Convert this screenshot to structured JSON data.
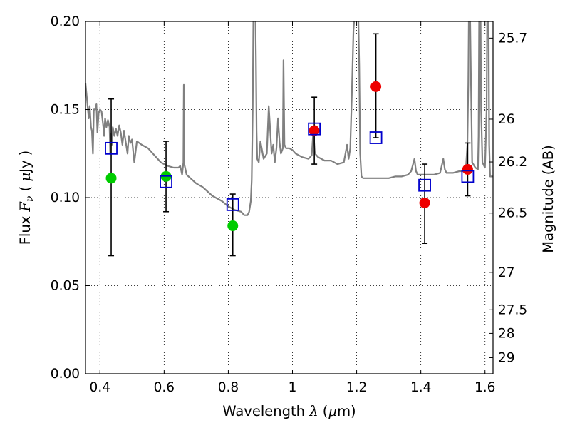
{
  "chart_data": {
    "type": "scatter",
    "xlabel": "Wavelength  λ (μm)",
    "xlabel_prefix": "Wavelength  ",
    "xlabel_symbol": "λ",
    "xlabel_unit_open": " (",
    "xlabel_unit_mu": "μ",
    "xlabel_unit_rest": "m)",
    "ylabel": "Flux  Fν  ( μJy )",
    "ylabel_prefix": "Flux  ",
    "ylabel_symbol": "F",
    "ylabel_sub": "ν",
    "ylabel_unit_open": "  ( ",
    "ylabel_unit_mu": "μ",
    "ylabel_unit_rest": "Jy )",
    "y2label": "Magnitude (AB)",
    "xlim": [
      0.355,
      1.625
    ],
    "ylim": [
      0.0,
      0.2
    ],
    "xticks": [
      0.4,
      0.6,
      0.8,
      1.0,
      1.2,
      1.4,
      1.6
    ],
    "xtick_labels": [
      "0.4",
      "0.6",
      "0.8",
      "1",
      "1.2",
      "1.4",
      "1.6"
    ],
    "yticks": [
      0.0,
      0.05,
      0.1,
      0.15,
      0.2
    ],
    "ytick_labels": [
      "0.00",
      "0.05",
      "0.10",
      "0.15",
      "0.20"
    ],
    "mag_ticks": [
      25.7,
      26,
      26.2,
      26.5,
      27,
      27.5,
      28,
      29
    ],
    "mag_tick_labels": [
      "25.7",
      "26",
      "26.2",
      "26.5",
      "27",
      "27.5",
      "28",
      "29"
    ],
    "grid": true,
    "colors": {
      "model_line": "#808080",
      "green": "#00cc00",
      "red": "#ee0000",
      "box": "#0000cc",
      "errorbar": "#000000"
    },
    "model_spectrum": [
      [
        0.355,
        0.165
      ],
      [
        0.36,
        0.155
      ],
      [
        0.365,
        0.145
      ],
      [
        0.368,
        0.152
      ],
      [
        0.372,
        0.14
      ],
      [
        0.375,
        0.138
      ],
      [
        0.378,
        0.125
      ],
      [
        0.381,
        0.15
      ],
      [
        0.385,
        0.15
      ],
      [
        0.389,
        0.153
      ],
      [
        0.392,
        0.137
      ],
      [
        0.396,
        0.148
      ],
      [
        0.4,
        0.15
      ],
      [
        0.405,
        0.149
      ],
      [
        0.41,
        0.141
      ],
      [
        0.413,
        0.135
      ],
      [
        0.416,
        0.145
      ],
      [
        0.42,
        0.14
      ],
      [
        0.425,
        0.144
      ],
      [
        0.43,
        0.14
      ],
      [
        0.432,
        0.125
      ],
      [
        0.434,
        0.136
      ],
      [
        0.437,
        0.13
      ],
      [
        0.44,
        0.14
      ],
      [
        0.445,
        0.135
      ],
      [
        0.45,
        0.139
      ],
      [
        0.455,
        0.135
      ],
      [
        0.46,
        0.141
      ],
      [
        0.465,
        0.137
      ],
      [
        0.47,
        0.13
      ],
      [
        0.475,
        0.138
      ],
      [
        0.48,
        0.132
      ],
      [
        0.486,
        0.125
      ],
      [
        0.49,
        0.135
      ],
      [
        0.495,
        0.131
      ],
      [
        0.5,
        0.133
      ],
      [
        0.507,
        0.12
      ],
      [
        0.515,
        0.132
      ],
      [
        0.53,
        0.13
      ],
      [
        0.55,
        0.128
      ],
      [
        0.57,
        0.124
      ],
      [
        0.59,
        0.12
      ],
      [
        0.61,
        0.118
      ],
      [
        0.63,
        0.117
      ],
      [
        0.645,
        0.117
      ],
      [
        0.65,
        0.118
      ],
      [
        0.656,
        0.113
      ],
      [
        0.66,
        0.12
      ],
      [
        0.6615,
        0.164
      ],
      [
        0.663,
        0.119
      ],
      [
        0.67,
        0.113
      ],
      [
        0.7,
        0.108
      ],
      [
        0.72,
        0.106
      ],
      [
        0.75,
        0.101
      ],
      [
        0.78,
        0.098
      ],
      [
        0.8,
        0.095
      ],
      [
        0.82,
        0.093
      ],
      [
        0.84,
        0.092
      ],
      [
        0.85,
        0.09
      ],
      [
        0.86,
        0.09
      ],
      [
        0.865,
        0.092
      ],
      [
        0.87,
        0.098
      ],
      [
        0.873,
        0.11
      ],
      [
        0.876,
        0.15
      ],
      [
        0.878,
        0.2
      ],
      [
        0.88,
        0.21
      ],
      [
        0.884,
        0.21
      ],
      [
        0.886,
        0.18
      ],
      [
        0.888,
        0.138
      ],
      [
        0.89,
        0.122
      ],
      [
        0.895,
        0.12
      ],
      [
        0.9,
        0.132
      ],
      [
        0.91,
        0.122
      ],
      [
        0.92,
        0.125
      ],
      [
        0.926,
        0.152
      ],
      [
        0.93,
        0.14
      ],
      [
        0.935,
        0.125
      ],
      [
        0.94,
        0.13
      ],
      [
        0.945,
        0.12
      ],
      [
        0.95,
        0.128
      ],
      [
        0.955,
        0.145
      ],
      [
        0.96,
        0.131
      ],
      [
        0.964,
        0.125
      ],
      [
        0.97,
        0.128
      ],
      [
        0.972,
        0.178
      ],
      [
        0.975,
        0.13
      ],
      [
        0.98,
        0.128
      ],
      [
        0.99,
        0.128
      ],
      [
        1.0,
        0.127
      ],
      [
        1.01,
        0.125
      ],
      [
        1.03,
        0.123
      ],
      [
        1.05,
        0.122
      ],
      [
        1.06,
        0.124
      ],
      [
        1.065,
        0.138
      ],
      [
        1.07,
        0.125
      ],
      [
        1.08,
        0.123
      ],
      [
        1.09,
        0.122
      ],
      [
        1.1,
        0.121
      ],
      [
        1.12,
        0.121
      ],
      [
        1.14,
        0.119
      ],
      [
        1.16,
        0.12
      ],
      [
        1.17,
        0.13
      ],
      [
        1.175,
        0.122
      ],
      [
        1.18,
        0.128
      ],
      [
        1.185,
        0.158
      ],
      [
        1.19,
        0.195
      ],
      [
        1.194,
        0.205
      ],
      [
        1.205,
        0.205
      ],
      [
        1.208,
        0.175
      ],
      [
        1.211,
        0.125
      ],
      [
        1.215,
        0.112
      ],
      [
        1.22,
        0.111
      ],
      [
        1.24,
        0.111
      ],
      [
        1.26,
        0.111
      ],
      [
        1.28,
        0.111
      ],
      [
        1.3,
        0.111
      ],
      [
        1.32,
        0.112
      ],
      [
        1.34,
        0.112
      ],
      [
        1.36,
        0.113
      ],
      [
        1.37,
        0.115
      ],
      [
        1.38,
        0.122
      ],
      [
        1.385,
        0.115
      ],
      [
        1.39,
        0.113
      ],
      [
        1.4,
        0.113
      ],
      [
        1.42,
        0.113
      ],
      [
        1.44,
        0.113
      ],
      [
        1.46,
        0.114
      ],
      [
        1.47,
        0.122
      ],
      [
        1.475,
        0.116
      ],
      [
        1.48,
        0.114
      ],
      [
        1.5,
        0.114
      ],
      [
        1.52,
        0.115
      ],
      [
        1.54,
        0.115
      ],
      [
        1.545,
        0.13
      ],
      [
        1.548,
        0.165
      ],
      [
        1.55,
        0.21
      ],
      [
        1.553,
        0.21
      ],
      [
        1.556,
        0.17
      ],
      [
        1.56,
        0.12
      ],
      [
        1.57,
        0.117
      ],
      [
        1.578,
        0.116
      ],
      [
        1.58,
        0.135
      ],
      [
        1.582,
        0.21
      ],
      [
        1.586,
        0.21
      ],
      [
        1.588,
        0.15
      ],
      [
        1.592,
        0.12
      ],
      [
        1.6,
        0.117
      ],
      [
        1.605,
        0.15
      ],
      [
        1.607,
        0.21
      ],
      [
        1.611,
        0.21
      ],
      [
        1.613,
        0.13
      ],
      [
        1.616,
        0.112
      ],
      [
        1.625,
        0.112
      ]
    ],
    "errorbars": [
      {
        "x": 0.435,
        "ylow": 0.067,
        "yhigh": 0.156
      },
      {
        "x": 0.606,
        "ylow": 0.092,
        "yhigh": 0.132
      },
      {
        "x": 0.814,
        "ylow": 0.067,
        "yhigh": 0.102
      },
      {
        "x": 1.068,
        "ylow": 0.119,
        "yhigh": 0.157
      },
      {
        "x": 1.26,
        "ylow": 0.134,
        "yhigh": 0.193
      },
      {
        "x": 1.412,
        "ylow": 0.074,
        "yhigh": 0.119
      },
      {
        "x": 1.546,
        "ylow": 0.101,
        "yhigh": 0.131
      }
    ],
    "series": [
      {
        "name": "green_points",
        "marker": "circle",
        "color": "#00cc00",
        "points": [
          [
            0.435,
            0.111
          ],
          [
            0.606,
            0.112
          ],
          [
            0.814,
            0.084
          ]
        ]
      },
      {
        "name": "red_points",
        "marker": "circle",
        "color": "#ee0000",
        "points": [
          [
            1.068,
            0.138
          ],
          [
            1.26,
            0.163
          ],
          [
            1.412,
            0.097
          ],
          [
            1.546,
            0.116
          ]
        ]
      },
      {
        "name": "model_boxes",
        "marker": "square-open",
        "color": "#0000cc",
        "points": [
          [
            0.435,
            0.128
          ],
          [
            0.606,
            0.109
          ],
          [
            0.814,
            0.096
          ],
          [
            1.068,
            0.139
          ],
          [
            1.26,
            0.134
          ],
          [
            1.412,
            0.107
          ],
          [
            1.546,
            0.112
          ]
        ]
      }
    ]
  }
}
